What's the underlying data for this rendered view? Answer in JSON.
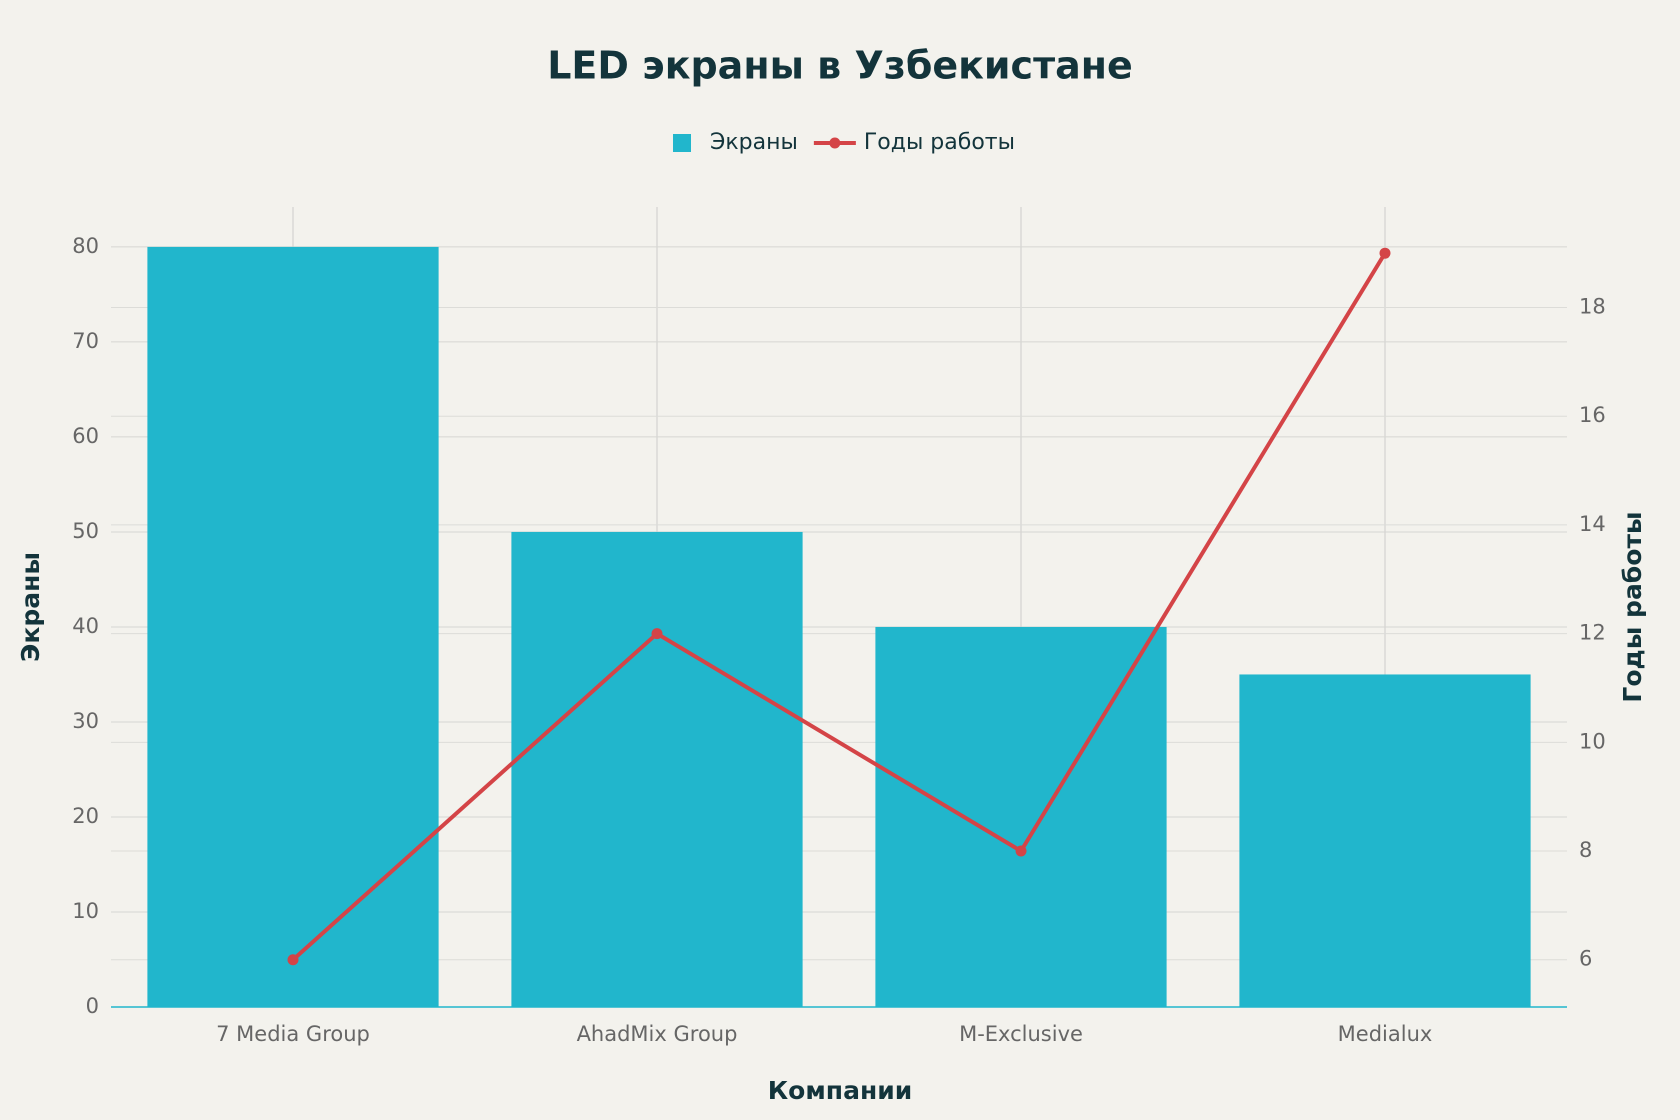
{
  "chart_data": {
    "type": "bar",
    "title": "LED экраны в Узбекистане",
    "x_label": "Компании",
    "y_label": "Экраны",
    "y2_label": "Годы работы",
    "categories": [
      "7 Media Group",
      "AhadMix Group",
      "M-Exclusive",
      "Medialux"
    ],
    "series": [
      {
        "name": "Экраны",
        "type": "bar",
        "color": "#21b6cc",
        "values": [
          80,
          50,
          40,
          35
        ]
      },
      {
        "name": "Годы работы",
        "type": "line",
        "axis": "y2",
        "color": "#d44447",
        "values": [
          6,
          12,
          8,
          19
        ]
      }
    ],
    "ylim": [
      0,
      84.2
    ],
    "yticks": [
      0,
      10,
      20,
      30,
      40,
      50,
      60,
      70,
      80
    ],
    "y2lim": [
      5.13,
      19.85
    ],
    "y2ticks": [
      6,
      8,
      10,
      12,
      14,
      16,
      18
    ],
    "grid": true,
    "legend": "top"
  }
}
